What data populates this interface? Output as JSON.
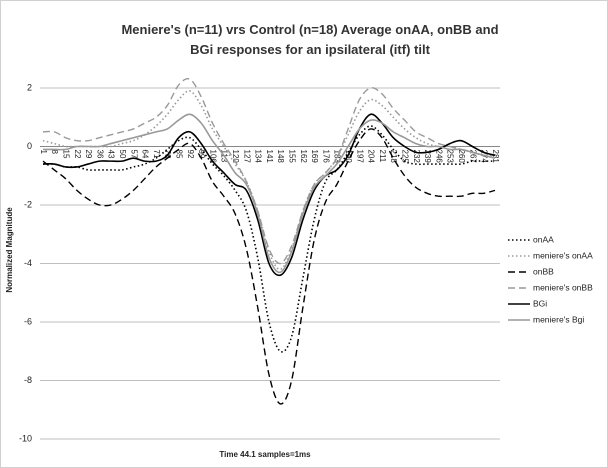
{
  "chart_data": {
    "type": "line",
    "title": "Meniere's  (n=11) vrs Control (n=18) Average onAA, onBB and BGi responses for an ipsilateral (itf) tilt",
    "x_label": "Time 44.1 samples=1ms",
    "y_label": "Normalized Magnitude",
    "categories": [
      "1",
      "8",
      "15",
      "22",
      "29",
      "36",
      "43",
      "50",
      "57",
      "64",
      "71",
      "78",
      "85",
      "92",
      "99",
      "106",
      "113",
      "120",
      "127",
      "134",
      "141",
      "148",
      "155",
      "162",
      "169",
      "176",
      "183",
      "190",
      "197",
      "204",
      "211",
      "218",
      "225",
      "232",
      "239",
      "246",
      "253",
      "260",
      "267",
      "274",
      "281"
    ],
    "ylim": [
      -10,
      2
    ],
    "yticks": [
      -10,
      -8,
      -6,
      -4,
      -2,
      0,
      2
    ],
    "grid": true,
    "legend": "right",
    "series": [
      {
        "name": "onAA",
        "color": "#000000",
        "dash": "dotted",
        "values": [
          -0.6,
          -0.6,
          -0.7,
          -0.7,
          -0.8,
          -0.8,
          -0.8,
          -0.8,
          -0.7,
          -0.6,
          -0.4,
          -0.1,
          0.2,
          0.3,
          -0.1,
          -0.6,
          -1.0,
          -1.5,
          -2.2,
          -3.8,
          -6.0,
          -7.0,
          -6.5,
          -4.5,
          -2.5,
          -1.2,
          -0.8,
          -0.2,
          0.4,
          0.7,
          0.4,
          -0.1,
          -0.5,
          -0.6,
          -0.6,
          -0.6,
          -0.6,
          -0.6,
          -0.5,
          -0.5,
          -0.5
        ]
      },
      {
        "name": "meniere's onAA",
        "color": "#999999",
        "dash": "dotted",
        "values": [
          0.2,
          0.1,
          0,
          0,
          0,
          0,
          0,
          0.1,
          0.2,
          0.4,
          0.7,
          1.1,
          1.6,
          1.9,
          1.4,
          0.6,
          0,
          -0.6,
          -1.2,
          -2.2,
          -3.6,
          -4.2,
          -3.5,
          -2.2,
          -1.3,
          -0.9,
          -0.4,
          0.4,
          1.2,
          1.6,
          1.4,
          1.0,
          0.6,
          0.3,
          0.1,
          0,
          0,
          -0.1,
          -0.2,
          -0.3,
          -0.3
        ]
      },
      {
        "name": "onBB",
        "color": "#000000",
        "dash": "dashed",
        "values": [
          -0.5,
          -0.8,
          -1.1,
          -1.5,
          -1.8,
          -2.0,
          -2.0,
          -1.8,
          -1.5,
          -1.1,
          -0.7,
          -0.4,
          -0.1,
          0.1,
          -0.4,
          -1.2,
          -1.7,
          -2.3,
          -3.5,
          -5.5,
          -7.8,
          -8.8,
          -8.0,
          -5.5,
          -3.2,
          -1.9,
          -1.3,
          -0.5,
          0.2,
          0.6,
          0.3,
          -0.4,
          -1.0,
          -1.4,
          -1.6,
          -1.7,
          -1.7,
          -1.7,
          -1.6,
          -1.6,
          -1.5
        ]
      },
      {
        "name": "meniere's onBB",
        "color": "#999999",
        "dash": "dashed",
        "values": [
          0.5,
          0.5,
          0.3,
          0.2,
          0.2,
          0.3,
          0.4,
          0.5,
          0.6,
          0.8,
          1.0,
          1.4,
          2.1,
          2.3,
          1.7,
          0.8,
          0.1,
          -0.5,
          -1.2,
          -2.2,
          -3.5,
          -4.0,
          -3.4,
          -2.2,
          -1.3,
          -0.9,
          -0.4,
          0.6,
          1.6,
          2.0,
          1.8,
          1.3,
          0.9,
          0.5,
          0.3,
          0.1,
          0,
          -0.1,
          -0.2,
          -0.3,
          -0.3
        ]
      },
      {
        "name": "BGi",
        "color": "#000000",
        "dash": "solid",
        "values": [
          -0.6,
          -0.6,
          -0.7,
          -0.7,
          -0.6,
          -0.5,
          -0.5,
          -0.5,
          -0.4,
          -0.5,
          -0.5,
          -0.3,
          0.3,
          0.5,
          0.1,
          -0.5,
          -0.9,
          -1.3,
          -1.5,
          -2.5,
          -4.0,
          -4.4,
          -3.8,
          -2.5,
          -1.5,
          -1.0,
          -0.8,
          -0.3,
          0.6,
          1.1,
          0.8,
          0.3,
          0,
          -0.2,
          -0.2,
          -0.1,
          0.1,
          0.2,
          0,
          -0.2,
          -0.3
        ]
      },
      {
        "name": "meniere's Bgi",
        "color": "#999999",
        "dash": "solid",
        "values": [
          -0.1,
          -0.1,
          -0.1,
          0,
          0,
          0,
          0.1,
          0.2,
          0.3,
          0.4,
          0.5,
          0.6,
          0.9,
          1.1,
          0.8,
          0.2,
          -0.3,
          -0.9,
          -1.3,
          -2.3,
          -3.8,
          -4.3,
          -3.6,
          -2.3,
          -1.4,
          -1.0,
          -0.6,
          0,
          0.6,
          0.9,
          0.8,
          0.5,
          0.3,
          0.1,
          0,
          0,
          -0.1,
          -0.1,
          -0.2,
          -0.3,
          -0.4
        ]
      }
    ]
  }
}
